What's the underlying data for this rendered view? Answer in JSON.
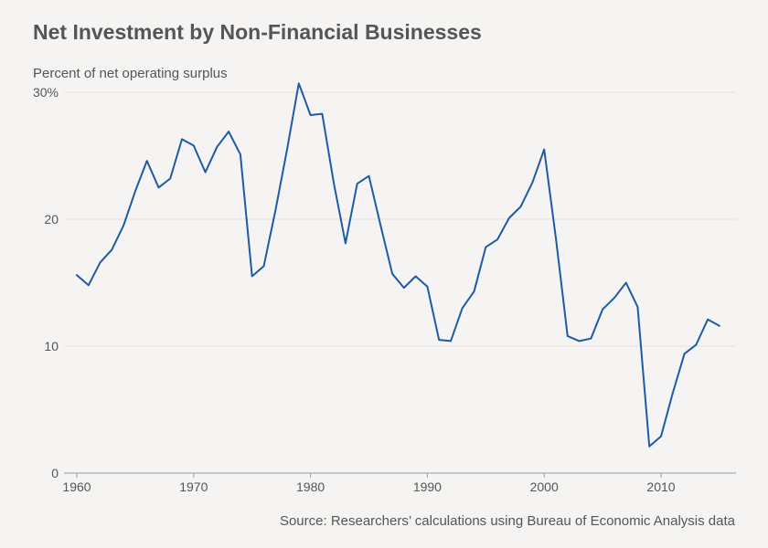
{
  "chart_data": {
    "type": "line",
    "title": "Net Investment by Non-Financial Businesses",
    "ylabel": "Percent of net operating surplus",
    "xlabel": "",
    "source": "Source: Researchers’ calculations using Bureau of Economic Analysis data",
    "xlim": [
      1960,
      2015
    ],
    "ylim": [
      0,
      30
    ],
    "x_ticks": [
      {
        "value": 1960,
        "label": "1960"
      },
      {
        "value": 1970,
        "label": "1970"
      },
      {
        "value": 1980,
        "label": "1980"
      },
      {
        "value": 1990,
        "label": "1990"
      },
      {
        "value": 2000,
        "label": "2000"
      },
      {
        "value": 2010,
        "label": "2010"
      }
    ],
    "y_ticks": [
      {
        "value": 0,
        "label": "0"
      },
      {
        "value": 10,
        "label": "10"
      },
      {
        "value": 20,
        "label": "20"
      },
      {
        "value": 30,
        "label": "30%"
      }
    ],
    "grid": true,
    "line_color": "#1f5aa6",
    "series": [
      {
        "x": [
          1960,
          1961,
          1962,
          1963,
          1964,
          1965,
          1966,
          1967,
          1968,
          1969,
          1970,
          1971,
          1972,
          1973,
          1974,
          1975,
          1976,
          1977,
          1978,
          1979,
          1980,
          1981,
          1982,
          1983,
          1984,
          1985,
          1986,
          1987,
          1988,
          1989,
          1990,
          1991,
          1992,
          1993,
          1994,
          1995,
          1996,
          1997,
          1998,
          1999,
          2000,
          2001,
          2002,
          2003,
          2004,
          2005,
          2006,
          2007,
          2008,
          2009,
          2010,
          2011,
          2012,
          2013,
          2014,
          2015
        ],
        "values": [
          15.6,
          14.8,
          16.6,
          17.6,
          19.5,
          22.2,
          24.6,
          22.5,
          23.2,
          26.3,
          25.8,
          23.7,
          25.7,
          26.9,
          25.1,
          15.5,
          16.3,
          20.7,
          25.5,
          30.7,
          28.2,
          28.3,
          22.8,
          18.1,
          22.8,
          23.4,
          19.5,
          15.7,
          14.6,
          15.5,
          14.7,
          10.5,
          10.4,
          13.0,
          14.3,
          17.8,
          18.4,
          20.1,
          21.0,
          22.9,
          25.5,
          18.5,
          10.8,
          10.4,
          10.6,
          12.9,
          13.8,
          15.0,
          13.1,
          2.1,
          2.9,
          6.3,
          9.4,
          10.1,
          12.1,
          11.6
        ]
      }
    ]
  }
}
